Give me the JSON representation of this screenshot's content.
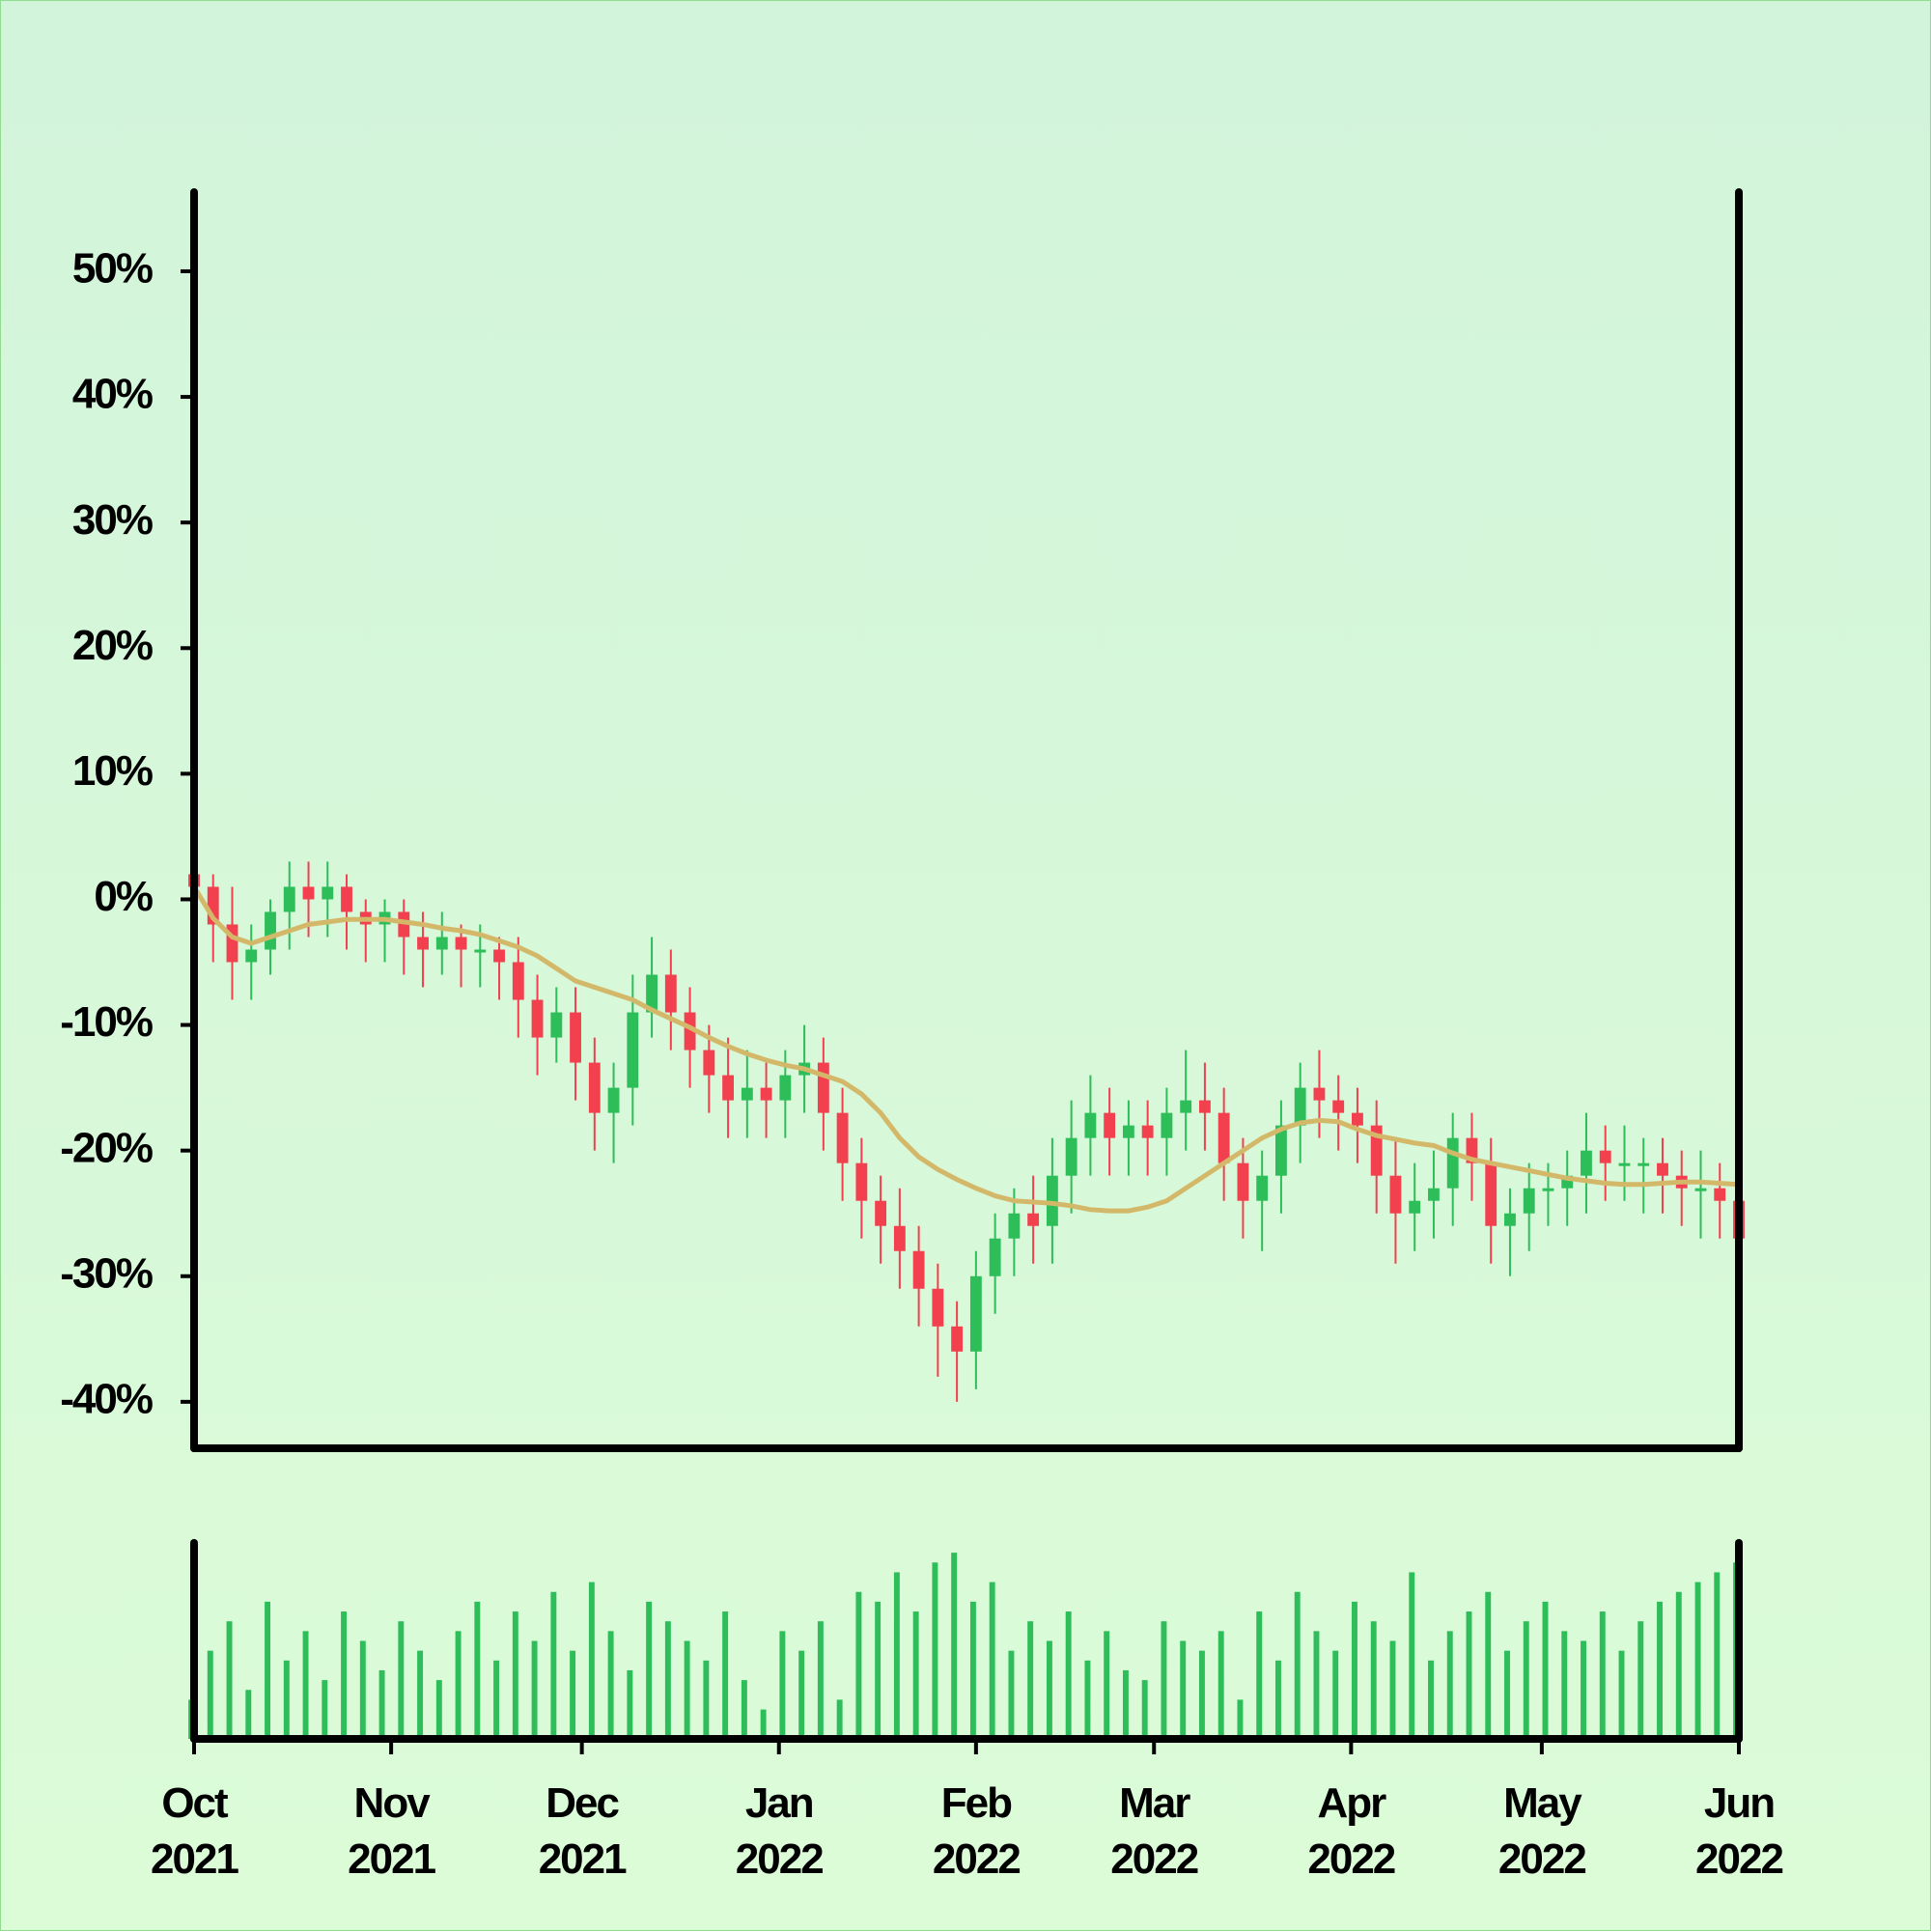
{
  "chart_data": {
    "type": "candlestick",
    "x": [
      0,
      3,
      6,
      9,
      12,
      15,
      18,
      21,
      24,
      27,
      30,
      33,
      36,
      39,
      42,
      45,
      48,
      51,
      54,
      57,
      60,
      63,
      66,
      69,
      72,
      75,
      78,
      81,
      84,
      87,
      90,
      93,
      96,
      99,
      102,
      105,
      108,
      111,
      114,
      117,
      120,
      123,
      126,
      129,
      132,
      135,
      138,
      141,
      144,
      147,
      150,
      153,
      156,
      159,
      162,
      165,
      168,
      171,
      174,
      177,
      180,
      183,
      186,
      189,
      192,
      195,
      198,
      201,
      204,
      207,
      210,
      213,
      216,
      219,
      222,
      225,
      228,
      231,
      234,
      237,
      240,
      243
    ],
    "open": [
      2,
      1,
      -2,
      -5,
      -4,
      -1,
      1,
      0,
      1,
      -1,
      -2,
      -1,
      -3,
      -4,
      -3,
      -4,
      -4,
      -5,
      -8,
      -11,
      -9,
      -13,
      -17,
      -15,
      -9,
      -6,
      -9,
      -12,
      -14,
      -16,
      -15,
      -16,
      -14,
      -13,
      -17,
      -21,
      -24,
      -26,
      -28,
      -31,
      -34,
      -36,
      -30,
      -27,
      -25,
      -26,
      -22,
      -19,
      -17,
      -19,
      -18,
      -19,
      -17,
      -16,
      -17,
      -21,
      -24,
      -22,
      -18,
      -15,
      -16,
      -17,
      -18,
      -22,
      -25,
      -24,
      -23,
      -19,
      -21,
      -26,
      -25,
      -23,
      -23,
      -22,
      -20,
      -21,
      -21,
      -21,
      -22,
      -23,
      -23,
      -24
    ],
    "high": [
      3,
      2,
      1,
      -2,
      0,
      3,
      3,
      3,
      2,
      0,
      0,
      0,
      -1,
      -1,
      -2,
      -2,
      -3,
      -3,
      -6,
      -7,
      -7,
      -11,
      -13,
      -6,
      -3,
      -4,
      -7,
      -10,
      -11,
      -12,
      -13,
      -12,
      -10,
      -11,
      -15,
      -19,
      -22,
      -23,
      -26,
      -29,
      -32,
      -28,
      -25,
      -23,
      -22,
      -19,
      -16,
      -14,
      -15,
      -16,
      -16,
      -15,
      -12,
      -13,
      -15,
      -19,
      -20,
      -16,
      -13,
      -12,
      -14,
      -15,
      -16,
      -19,
      -21,
      -20,
      -17,
      -17,
      -19,
      -23,
      -21,
      -21,
      -20,
      -17,
      -18,
      -18,
      -19,
      -19,
      -20,
      -20,
      -21,
      -21
    ],
    "low": [
      -1,
      -5,
      -8,
      -8,
      -6,
      -4,
      -3,
      -3,
      -4,
      -5,
      -5,
      -6,
      -7,
      -6,
      -7,
      -7,
      -8,
      -11,
      -14,
      -13,
      -16,
      -20,
      -21,
      -18,
      -11,
      -12,
      -15,
      -17,
      -19,
      -19,
      -19,
      -19,
      -17,
      -20,
      -24,
      -27,
      -29,
      -31,
      -34,
      -38,
      -40,
      -39,
      -33,
      -30,
      -29,
      -29,
      -25,
      -22,
      -22,
      -22,
      -22,
      -22,
      -20,
      -20,
      -24,
      -27,
      -28,
      -25,
      -21,
      -19,
      -20,
      -21,
      -25,
      -29,
      -28,
      -27,
      -26,
      -24,
      -29,
      -30,
      -28,
      -26,
      -26,
      -25,
      -24,
      -24,
      -25,
      -25,
      -26,
      -27,
      -27,
      -32
    ],
    "close": [
      1,
      -2,
      -5,
      -4,
      -1,
      1,
      0,
      1,
      -1,
      -2,
      -1,
      -3,
      -4,
      -3,
      -4,
      -4,
      -5,
      -8,
      -11,
      -9,
      -13,
      -17,
      -15,
      -9,
      -6,
      -9,
      -12,
      -14,
      -16,
      -15,
      -16,
      -14,
      -13,
      -17,
      -21,
      -24,
      -26,
      -28,
      -31,
      -34,
      -36,
      -30,
      -27,
      -25,
      -26,
      -22,
      -19,
      -17,
      -19,
      -18,
      -19,
      -17,
      -16,
      -17,
      -21,
      -24,
      -22,
      -18,
      -15,
      -16,
      -17,
      -18,
      -22,
      -25,
      -24,
      -23,
      -19,
      -21,
      -26,
      -25,
      -23,
      -23,
      -22,
      -20,
      -21,
      -21,
      -21,
      -22,
      -23,
      -23,
      -24,
      -27
    ],
    "up_color": "#2dbe5a",
    "down_color": "#f2404f",
    "ma": {
      "color": "#d4b86a",
      "values": [
        1,
        -1.5,
        -3,
        -3.5,
        -3,
        -2.5,
        -2,
        -1.8,
        -1.6,
        -1.6,
        -1.6,
        -1.8,
        -2,
        -2.3,
        -2.5,
        -2.8,
        -3.3,
        -3.8,
        -4.5,
        -5.5,
        -6.5,
        -7,
        -7.5,
        -8,
        -8.8,
        -9.5,
        -10.2,
        -11,
        -11.7,
        -12.3,
        -12.8,
        -13.2,
        -13.5,
        -14,
        -14.5,
        -15.5,
        -17,
        -19,
        -20.5,
        -21.5,
        -22.3,
        -23,
        -23.6,
        -24,
        -24.1,
        -24.2,
        -24.4,
        -24.7,
        -24.8,
        -24.8,
        -24.5,
        -24,
        -23,
        -22,
        -21,
        -20,
        -19,
        -18.3,
        -17.8,
        -17.6,
        -17.7,
        -18.3,
        -18.8,
        -19.1,
        -19.4,
        -19.6,
        -20.2,
        -20.7,
        -21,
        -21.3,
        -21.6,
        -21.9,
        -22.2,
        -22.4,
        -22.6,
        -22.7,
        -22.7,
        -22.6,
        -22.5,
        -22.5,
        -22.6,
        -22.7
      ]
    },
    "volume": {
      "color": "#2dbe5a",
      "ylim": [
        0,
        100
      ],
      "values": [
        20,
        45,
        60,
        25,
        70,
        40,
        55,
        30,
        65,
        50,
        35,
        60,
        45,
        30,
        55,
        70,
        40,
        65,
        50,
        75,
        45,
        80,
        55,
        35,
        70,
        60,
        50,
        40,
        65,
        30,
        15,
        55,
        45,
        60,
        20,
        75,
        70,
        85,
        65,
        90,
        95,
        70,
        80,
        45,
        60,
        50,
        65,
        40,
        55,
        35,
        30,
        60,
        50,
        45,
        55,
        20,
        65,
        40,
        75,
        55,
        45,
        70,
        60,
        50,
        85,
        40,
        55,
        65,
        75,
        45,
        60,
        70,
        55,
        50,
        65,
        45,
        60,
        70,
        75,
        80,
        85,
        90
      ]
    },
    "xlim": [
      0,
      243
    ],
    "xticks": [
      {
        "value": 0,
        "label": "Oct\n2021"
      },
      {
        "value": 31,
        "label": "Nov\n2021"
      },
      {
        "value": 61,
        "label": "Dec\n2021"
      },
      {
        "value": 92,
        "label": "Jan\n2022"
      },
      {
        "value": 123,
        "label": "Feb\n2022"
      },
      {
        "value": 151,
        "label": "Mar\n2022"
      },
      {
        "value": 182,
        "label": "Apr\n2022"
      },
      {
        "value": 212,
        "label": "May\n2022"
      },
      {
        "value": 243,
        "label": "Jun\n2022"
      }
    ],
    "ylim": [
      -43.7,
      56.3
    ],
    "yticks": [
      {
        "value": 50,
        "label": "50%"
      },
      {
        "value": 40,
        "label": "40%"
      },
      {
        "value": 30,
        "label": "30%"
      },
      {
        "value": 20,
        "label": "20%"
      },
      {
        "value": 10,
        "label": "10%"
      },
      {
        "value": 0,
        "label": "0%"
      },
      {
        "value": -10,
        "label": "-10%"
      },
      {
        "value": -20,
        "label": "-20%"
      },
      {
        "value": -30,
        "label": "-30%"
      },
      {
        "value": -40,
        "label": "-40%"
      }
    ]
  }
}
